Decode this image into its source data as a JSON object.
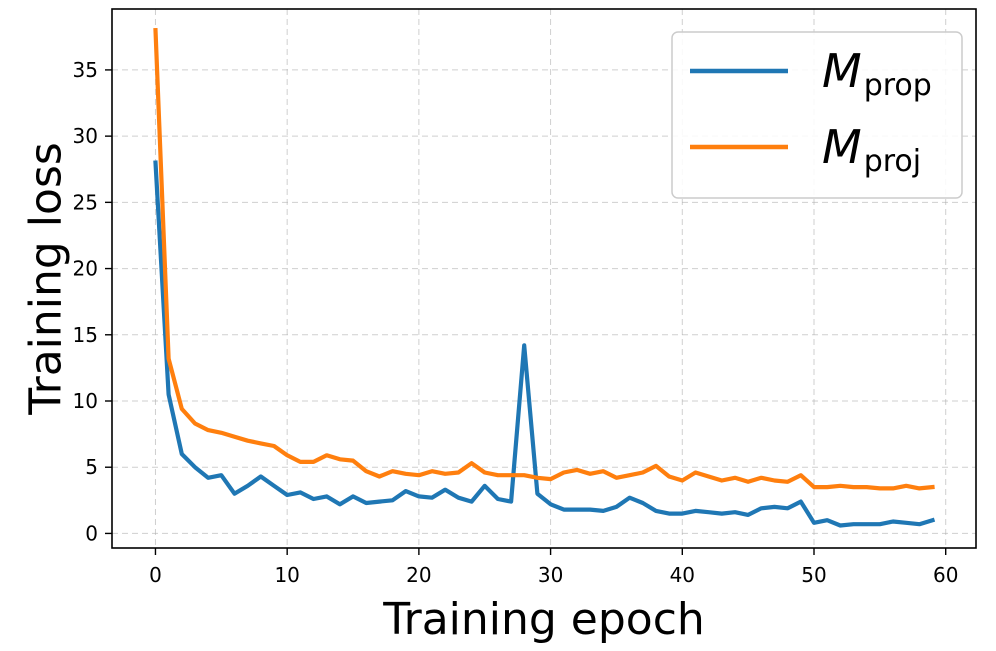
{
  "chart_data": {
    "type": "line",
    "title": "",
    "xlabel": "Training epoch",
    "ylabel": "Training loss",
    "xlim": [
      -3.3,
      62.3
    ],
    "ylim": [
      -1.1,
      39.6
    ],
    "x_ticks": [
      0,
      10,
      20,
      30,
      40,
      50,
      60
    ],
    "y_ticks": [
      0,
      5,
      10,
      15,
      20,
      25,
      30,
      35
    ],
    "grid": true,
    "legend_position": "top-right",
    "series": [
      {
        "legend_main": "M",
        "legend_sub": "prop",
        "color": "#1f77b4",
        "x": [
          0,
          1,
          2,
          3,
          4,
          5,
          6,
          7,
          8,
          9,
          10,
          11,
          12,
          13,
          14,
          15,
          16,
          17,
          18,
          19,
          20,
          21,
          22,
          23,
          24,
          25,
          26,
          27,
          28,
          29,
          30,
          31,
          32,
          33,
          34,
          35,
          36,
          37,
          38,
          39,
          40,
          41,
          42,
          43,
          44,
          45,
          46,
          47,
          48,
          49,
          50,
          51,
          52,
          53,
          54,
          55,
          56,
          57,
          58,
          59
        ],
        "values": [
          28.0,
          10.5,
          6.0,
          5.0,
          4.2,
          4.4,
          3.0,
          3.6,
          4.3,
          3.6,
          2.9,
          3.1,
          2.6,
          2.8,
          2.2,
          2.8,
          2.3,
          2.4,
          2.5,
          3.2,
          2.8,
          2.7,
          3.3,
          2.7,
          2.4,
          3.6,
          2.6,
          2.4,
          14.2,
          3.0,
          2.2,
          1.8,
          1.8,
          1.8,
          1.7,
          2.0,
          2.7,
          2.3,
          1.7,
          1.5,
          1.5,
          1.7,
          1.6,
          1.5,
          1.6,
          1.4,
          1.9,
          2.0,
          1.9,
          2.4,
          0.8,
          1.0,
          0.6,
          0.7,
          0.7,
          0.7,
          0.9,
          0.8,
          0.7,
          1.0
        ]
      },
      {
        "legend_main": "M",
        "legend_sub": "proj",
        "color": "#ff7f0e",
        "x": [
          0,
          1,
          2,
          3,
          4,
          5,
          6,
          7,
          8,
          9,
          10,
          11,
          12,
          13,
          14,
          15,
          16,
          17,
          18,
          19,
          20,
          21,
          22,
          23,
          24,
          25,
          26,
          27,
          28,
          29,
          30,
          31,
          32,
          33,
          34,
          35,
          36,
          37,
          38,
          39,
          40,
          41,
          42,
          43,
          44,
          45,
          46,
          47,
          48,
          49,
          50,
          51,
          52,
          53,
          54,
          55,
          56,
          57,
          58,
          59
        ],
        "values": [
          38.0,
          13.2,
          9.4,
          8.3,
          7.8,
          7.6,
          7.3,
          7.0,
          6.8,
          6.6,
          5.9,
          5.4,
          5.4,
          5.9,
          5.6,
          5.5,
          4.7,
          4.3,
          4.7,
          4.5,
          4.4,
          4.7,
          4.5,
          4.6,
          5.3,
          4.6,
          4.4,
          4.4,
          4.4,
          4.2,
          4.1,
          4.6,
          4.8,
          4.5,
          4.7,
          4.2,
          4.4,
          4.6,
          5.1,
          4.3,
          4.0,
          4.6,
          4.3,
          4.0,
          4.2,
          3.9,
          4.2,
          4.0,
          3.9,
          4.4,
          3.5,
          3.5,
          3.6,
          3.5,
          3.5,
          3.4,
          3.4,
          3.6,
          3.4,
          3.5
        ]
      }
    ]
  }
}
